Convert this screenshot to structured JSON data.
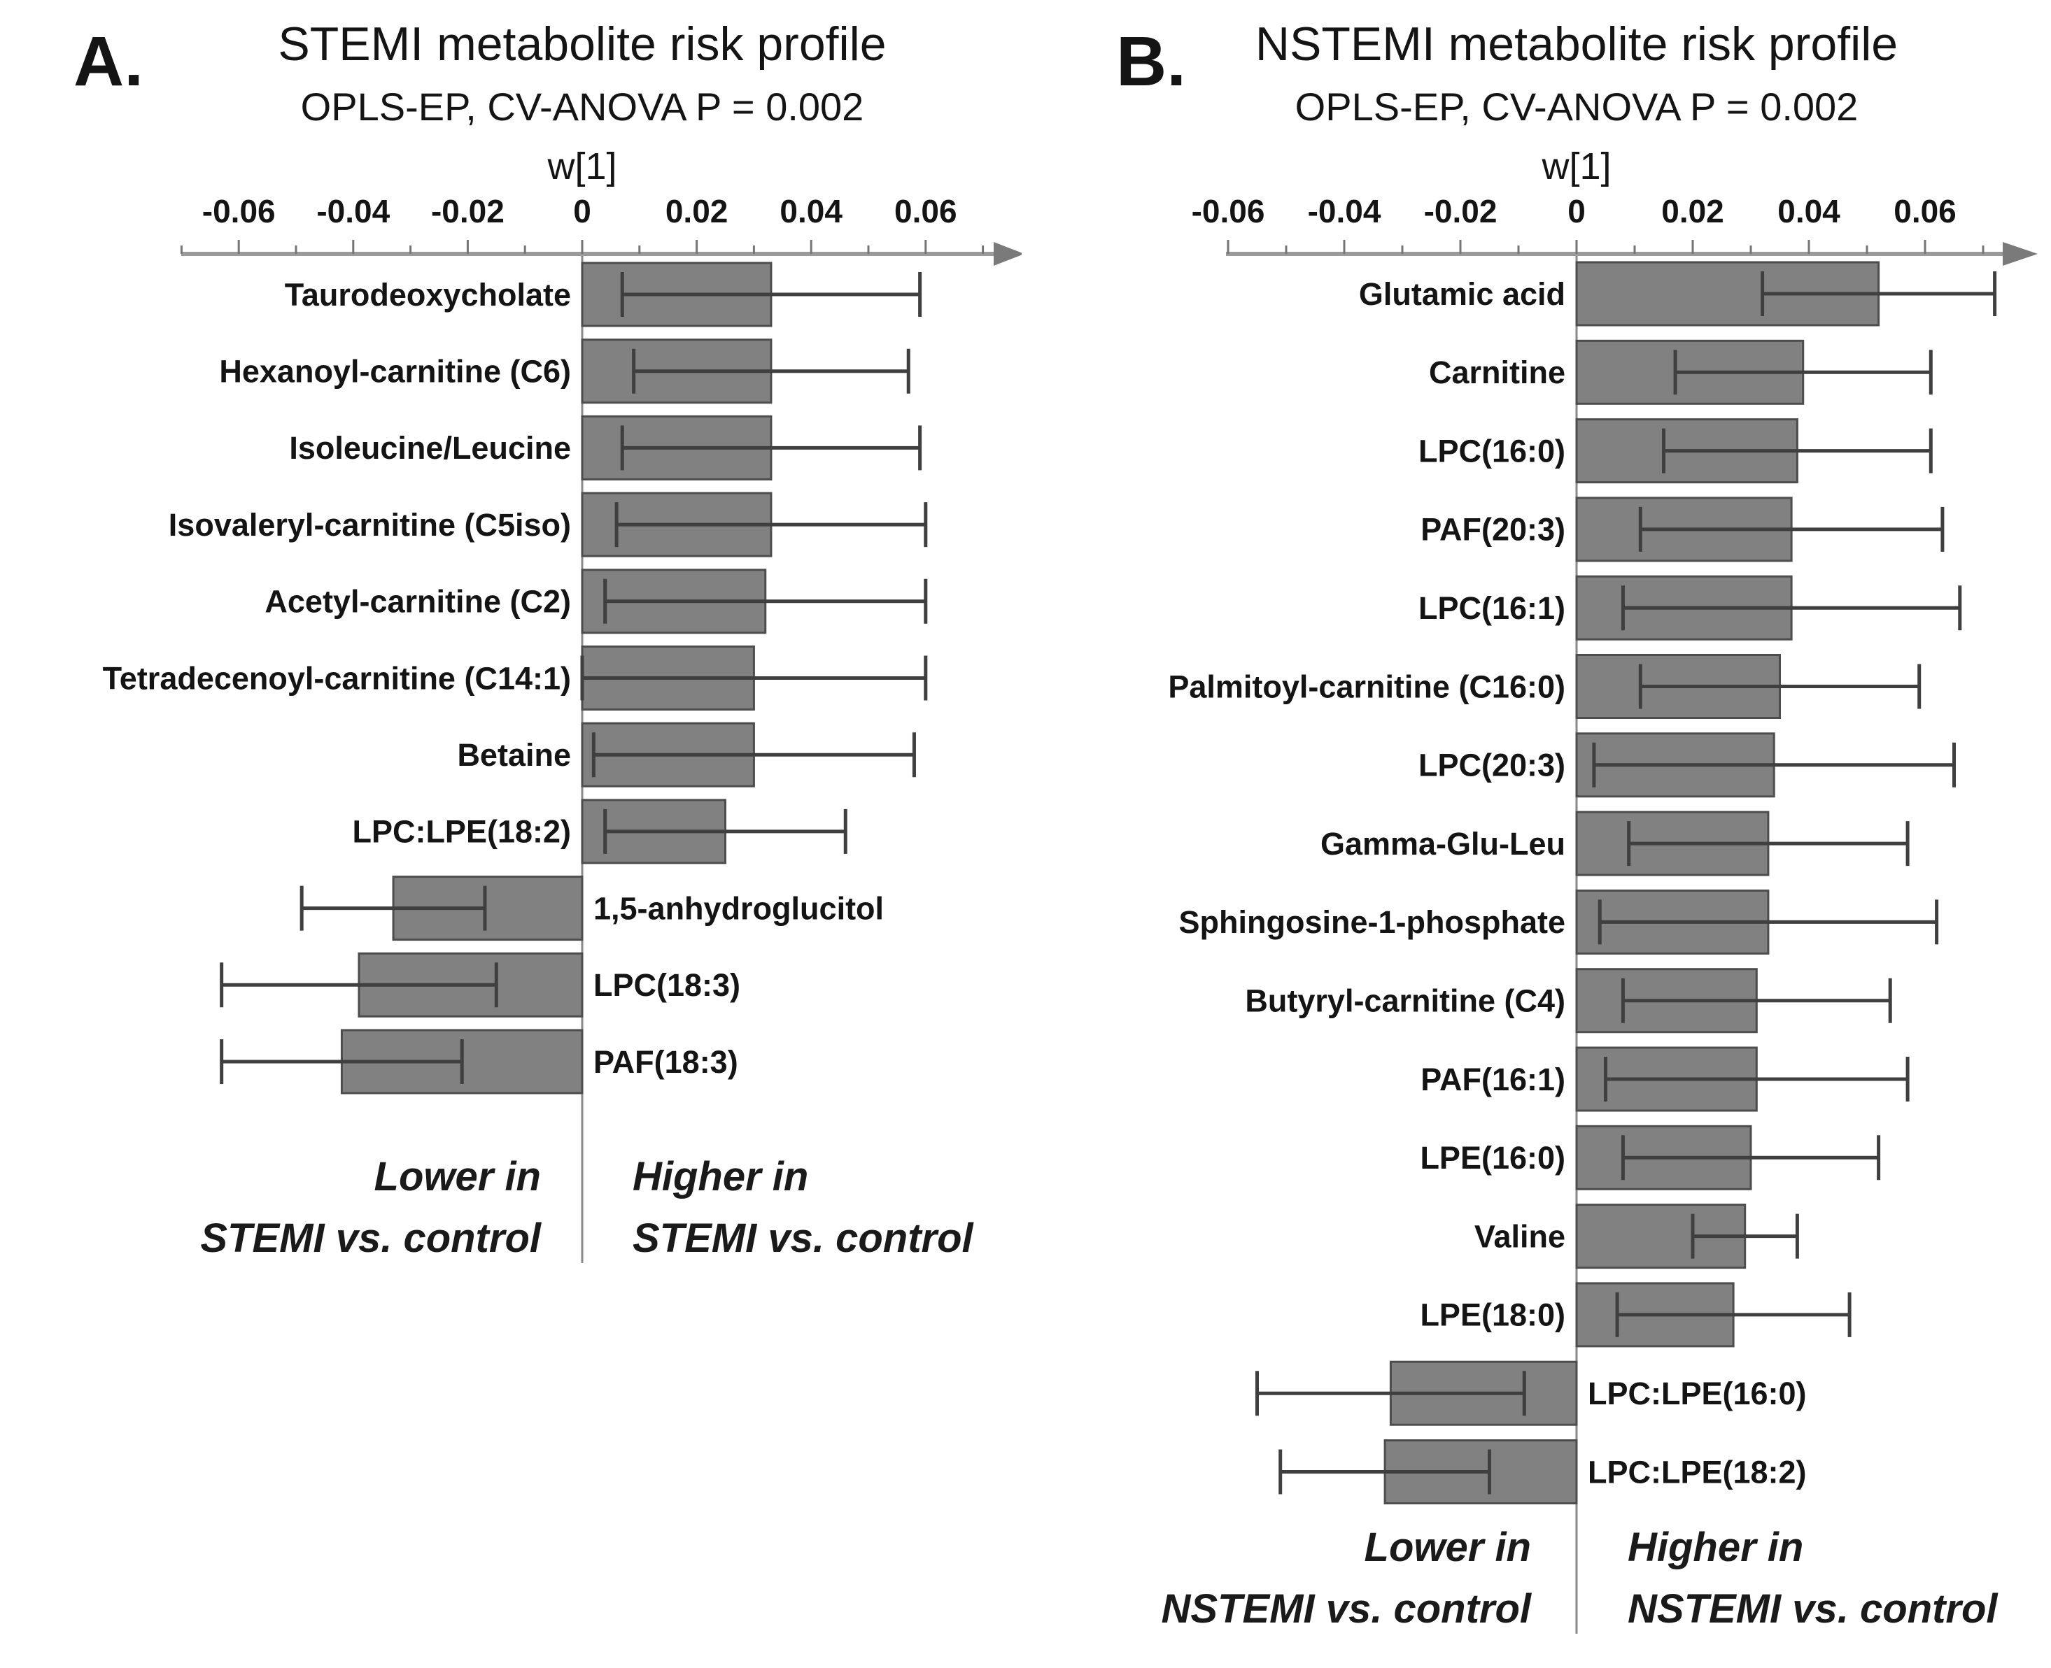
{
  "figure": {
    "background": "#ffffff",
    "colors": {
      "bar_fill": "#818181",
      "bar_edge": "#4d4d4d",
      "whisker": "#3f3f3f",
      "axis_line": "#9a9a9a",
      "tick_mark": "#757575",
      "arrow": "#7a7a7a",
      "zero_line": "#8a8a8a",
      "text": "#141414"
    }
  },
  "chart_data": [
    {
      "type": "bar",
      "orientation": "horizontal",
      "panel_label": "A.",
      "title": "STEMI metabolite risk profile",
      "subtitle": "OPLS-EP, CV-ANOVA P = 0.002",
      "xlabel": "w[1]",
      "xlim": [
        -0.07,
        0.075
      ],
      "grid": false,
      "tick_values": [
        -0.06,
        -0.04,
        -0.02,
        0,
        0.02,
        0.04,
        0.06
      ],
      "tick_labels": [
        "-0.06",
        "-0.04",
        "-0.02",
        "0",
        "0.02",
        "0.04",
        "0.06"
      ],
      "categories": [
        "Taurodeoxycholate",
        "Hexanoyl-carnitine (C6)",
        "Isoleucine/Leucine",
        "Isovaleryl-carnitine (C5iso)",
        "Acetyl-carnitine (C2)",
        "Tetradecenoyl-carnitine (C14:1)",
        "Betaine",
        "LPC:LPE(18:2)",
        "1,5-anhydroglucitol",
        "LPC(18:3)",
        "PAF(18:3)"
      ],
      "values": [
        0.033,
        0.033,
        0.033,
        0.033,
        0.032,
        0.03,
        0.03,
        0.025,
        -0.033,
        -0.039,
        -0.042
      ],
      "errors": [
        0.026,
        0.024,
        0.026,
        0.027,
        0.028,
        0.03,
        0.028,
        0.021,
        0.016,
        0.024,
        0.021
      ],
      "annotations": {
        "lower_line1": "Lower in",
        "lower_line2": "STEMI vs. control",
        "higher_line1": "Higher in",
        "higher_line2": "STEMI vs. control"
      }
    },
    {
      "type": "bar",
      "orientation": "horizontal",
      "panel_label": "B.",
      "title": "NSTEMI metabolite risk profile",
      "subtitle": "OPLS-EP, CV-ANOVA P = 0.002",
      "xlabel": "w[1]",
      "xlim": [
        -0.06,
        0.075
      ],
      "grid": false,
      "tick_values": [
        -0.06,
        -0.04,
        -0.02,
        0,
        0.02,
        0.04,
        0.06
      ],
      "tick_labels": [
        "-0.06",
        "-0.04",
        "-0.02",
        "0",
        "0.02",
        "0.04",
        "0.06"
      ],
      "categories": [
        "Glutamic acid",
        "Carnitine",
        "LPC(16:0)",
        "PAF(20:3)",
        "LPC(16:1)",
        "Palmitoyl-carnitine (C16:0)",
        "LPC(20:3)",
        "Gamma-Glu-Leu",
        "Sphingosine-1-phosphate",
        "Butyryl-carnitine (C4)",
        "PAF(16:1)",
        "LPE(16:0)",
        "Valine",
        "LPE(18:0)",
        "LPC:LPE(16:0)",
        "LPC:LPE(18:2)"
      ],
      "values": [
        0.052,
        0.039,
        0.038,
        0.037,
        0.037,
        0.035,
        0.034,
        0.033,
        0.033,
        0.031,
        0.031,
        0.03,
        0.029,
        0.027,
        -0.032,
        -0.033
      ],
      "errors": [
        0.02,
        0.022,
        0.023,
        0.026,
        0.029,
        0.024,
        0.031,
        0.024,
        0.029,
        0.023,
        0.026,
        0.022,
        0.009,
        0.02,
        0.023,
        0.018
      ],
      "annotations": {
        "lower_line1": "Lower in",
        "lower_line2": "NSTEMI vs. control",
        "higher_line1": "Higher in",
        "higher_line2": "NSTEMI vs. control"
      }
    }
  ]
}
